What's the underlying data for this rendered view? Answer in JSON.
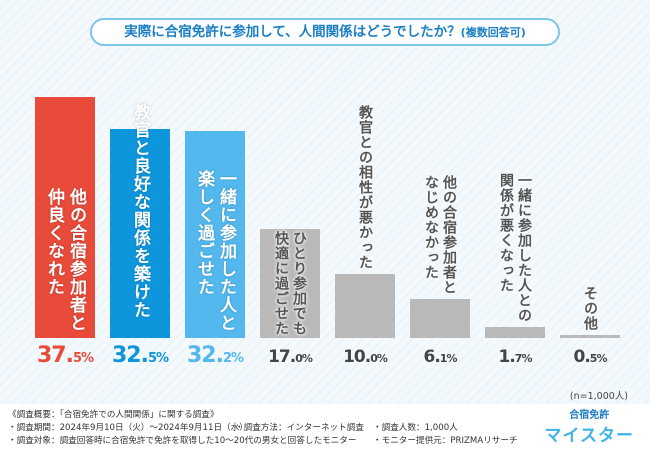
{
  "title": "実際に合宿免許に参加して、人間関係はどうでしたか？",
  "title_note": "(複数回答可)",
  "chart_data": {
    "type": "bar",
    "title": "実際に合宿免許に参加して、人間関係はどうでしたか？(複数回答可)",
    "categories": [
      [
        "他の合宿参加者と",
        "仲良くなれた"
      ],
      [
        "教官と良好な関係を築けた"
      ],
      [
        "一緒に参加した人と",
        "楽しく過ごせた"
      ],
      [
        "ひとり参加でも",
        "快適に過ごせた"
      ],
      [
        "教官との相性が悪かった"
      ],
      [
        "他の合宿参加者と",
        "なじめなかった"
      ],
      [
        "一緒に参加した人との",
        "関係が悪くなった"
      ],
      [
        "その他"
      ]
    ],
    "values": [
      37.5,
      32.5,
      32.2,
      17.0,
      10.0,
      6.1,
      1.7,
      0.5
    ],
    "value_labels": [
      [
        "37.",
        "5%"
      ],
      [
        "32.",
        "5%"
      ],
      [
        "32.",
        "2%"
      ],
      [
        "17.",
        "0%"
      ],
      [
        "10.",
        "0%"
      ],
      [
        "6.",
        "1%"
      ],
      [
        "1.",
        "7%"
      ],
      [
        "0.",
        "5%"
      ]
    ],
    "colors": [
      "#e84b3a",
      "#0e96dc",
      "#53b8ee",
      "#b9b9b9",
      "#b9b9b9",
      "#b9b9b9",
      "#b9b9b9",
      "#b9b9b9"
    ],
    "label_colors": [
      "#e84b3a",
      "#0e96dc",
      "#53b8ee",
      "#444444",
      "#444444",
      "#444444",
      "#444444",
      "#444444"
    ],
    "ylim": [
      0,
      40
    ],
    "grid": false
  },
  "n_note": "(n=1,000人)",
  "footer": {
    "line1": "《調査概要：「合宿免許での人間関係」に関する調査》",
    "period": "・調査期間：2024年9月10日（火）～2024年9月11日（水）",
    "method": "・調査方法：インターネット調査",
    "count": "・調査人数：1,000人",
    "target": "・調査対象：調査回答時に合宿免許で免許を取得した10～20代の男女と回答したモニター",
    "provider": "・モニター提供元：PRIZMAリサーチ"
  },
  "logo": {
    "top": "合宿免許",
    "bottom": "マイスター"
  }
}
